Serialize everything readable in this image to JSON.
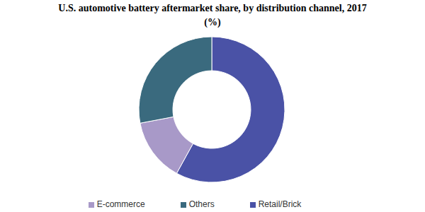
{
  "chart_data": {
    "type": "pie",
    "title": "U.S. automotive battery aftermarket share, by distribution channel, 2017 (%)",
    "categories": [
      "Retail/Brick",
      "E-commerce",
      "Others"
    ],
    "values": [
      58,
      14,
      28
    ],
    "colors": [
      "#4a52a6",
      "#a899c8",
      "#3a6a7e"
    ],
    "legend": "bottom"
  }
}
